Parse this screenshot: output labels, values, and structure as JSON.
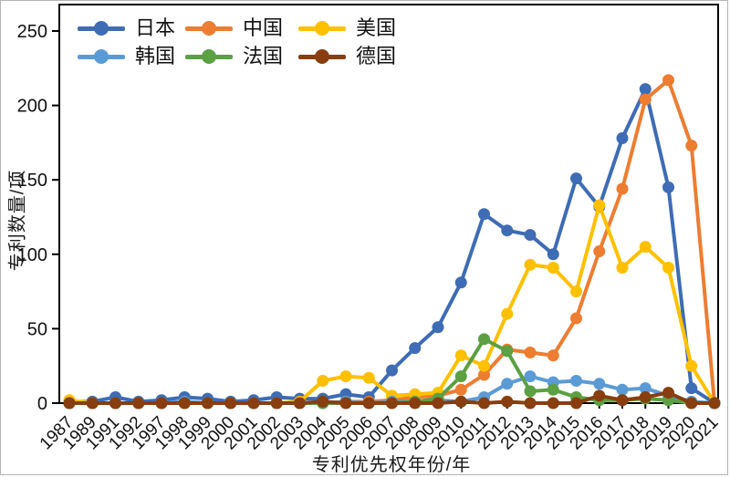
{
  "figure": {
    "type_note": "static line chart figure",
    "background": "#ffffff",
    "plot_border_color": "#000000"
  },
  "chart_data": {
    "type": "line",
    "title": "",
    "xlabel": "专利优先权年份/年",
    "ylabel": "专利数量/项",
    "ylim": [
      0,
      250
    ],
    "yticks": [
      0,
      50,
      100,
      150,
      200,
      250
    ],
    "grid": false,
    "legend_position": "top-left, 2 rows x 3 columns",
    "categories": [
      "1987",
      "1989",
      "1991",
      "1992",
      "1997",
      "1998",
      "1999",
      "2000",
      "2001",
      "2002",
      "2003",
      "2004",
      "2005",
      "2006",
      "2007",
      "2008",
      "2009",
      "2010",
      "2011",
      "2012",
      "2013",
      "2014",
      "2015",
      "2016",
      "2017",
      "2018",
      "2019",
      "2020",
      "2021"
    ],
    "series": [
      {
        "key": "japan",
        "name": "日本",
        "color": "#3E6CB5",
        "values": [
          1,
          1,
          4,
          1,
          2,
          4,
          3,
          1,
          2,
          4,
          3,
          3,
          6,
          4,
          22,
          37,
          51,
          81,
          127,
          116,
          113,
          100,
          151,
          132,
          178,
          211,
          145,
          10,
          0
        ]
      },
      {
        "key": "china",
        "name": "中国",
        "color": "#ED7D31",
        "values": [
          0,
          0,
          0,
          0,
          0,
          0,
          0,
          0,
          0,
          0,
          0,
          0,
          1,
          1,
          2,
          4,
          5,
          9,
          19,
          36,
          34,
          32,
          57,
          102,
          144,
          204,
          217,
          173,
          0
        ]
      },
      {
        "key": "usa",
        "name": "美国",
        "color": "#FFC000",
        "values": [
          2,
          0,
          0,
          0,
          0,
          0,
          0,
          0,
          0,
          0,
          1,
          15,
          18,
          17,
          5,
          6,
          7,
          32,
          25,
          60,
          93,
          91,
          75,
          133,
          91,
          105,
          91,
          25,
          0
        ]
      },
      {
        "key": "korea",
        "name": "韩国",
        "color": "#5B9BD5",
        "values": [
          0,
          0,
          0,
          0,
          0,
          1,
          0,
          0,
          0,
          0,
          0,
          0,
          1,
          0,
          1,
          1,
          2,
          1,
          4,
          13,
          18,
          14,
          15,
          13,
          9,
          10,
          5,
          1,
          0
        ]
      },
      {
        "key": "france",
        "name": "法国",
        "color": "#5BA043",
        "values": [
          0,
          0,
          0,
          0,
          0,
          0,
          0,
          0,
          0,
          0,
          0,
          0,
          0,
          0,
          0,
          1,
          3,
          18,
          43,
          35,
          8,
          9,
          4,
          2,
          2,
          3,
          2,
          0,
          0
        ]
      },
      {
        "key": "germany",
        "name": "德国",
        "color": "#883E0F",
        "values": [
          0,
          0,
          0,
          0,
          0,
          0,
          0,
          0,
          0,
          0,
          0,
          1,
          0,
          0,
          0,
          0,
          0,
          1,
          0,
          1,
          0,
          0,
          0,
          5,
          2,
          4,
          7,
          0,
          0
        ]
      }
    ]
  }
}
